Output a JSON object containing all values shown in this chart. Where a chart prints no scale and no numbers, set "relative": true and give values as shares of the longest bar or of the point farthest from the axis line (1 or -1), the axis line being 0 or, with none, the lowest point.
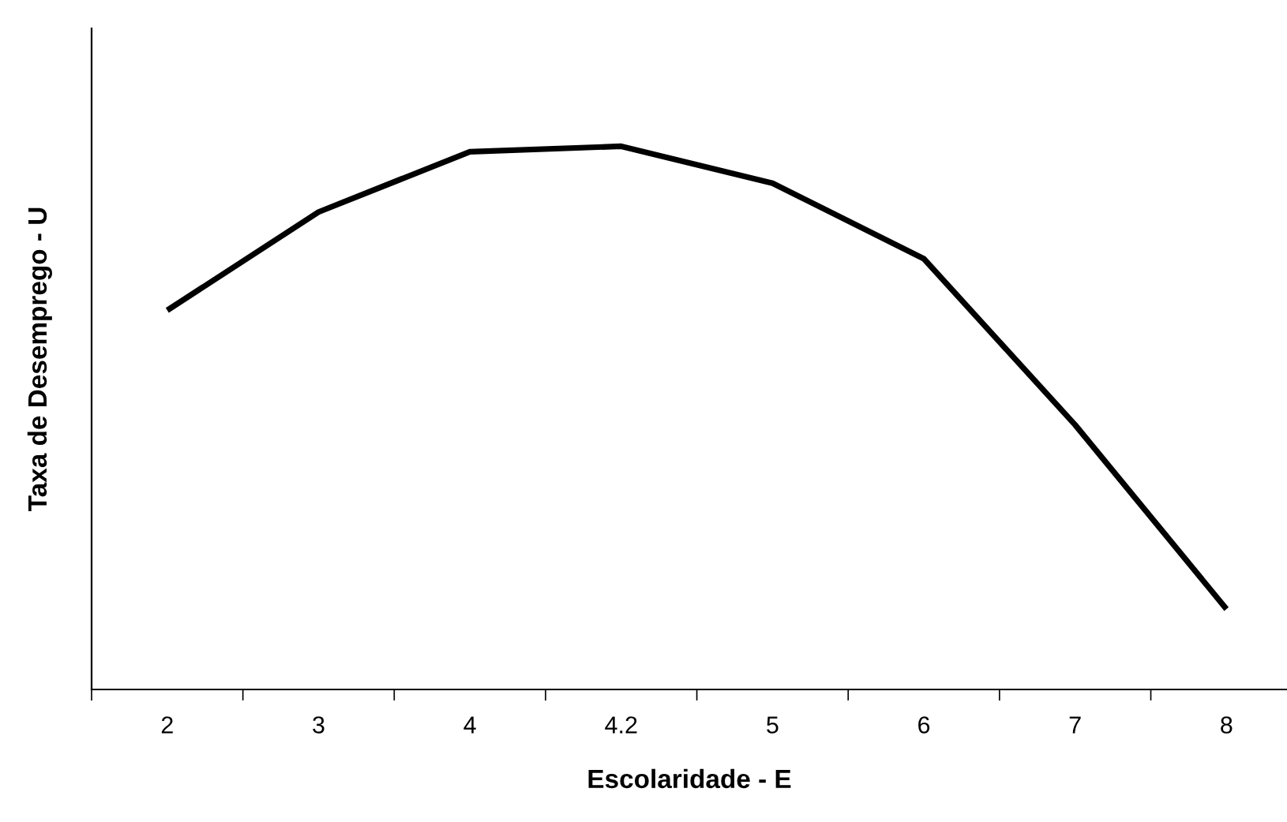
{
  "chart_data": {
    "type": "line",
    "relative": true,
    "xlabel": "Escolaridade - E",
    "ylabel": "Taxa de Desemprego - U",
    "categories": [
      "2",
      "3",
      "4",
      "4.2",
      "5",
      "6",
      "7",
      "8"
    ],
    "series": [
      {
        "color": "#000000",
        "values": [
          0.698,
          0.879,
          0.99,
          1,
          0.932,
          0.793,
          0.487,
          0.148
        ]
      }
    ],
    "grid": false,
    "legend": false,
    "marker": "none",
    "line_style": "solid"
  }
}
